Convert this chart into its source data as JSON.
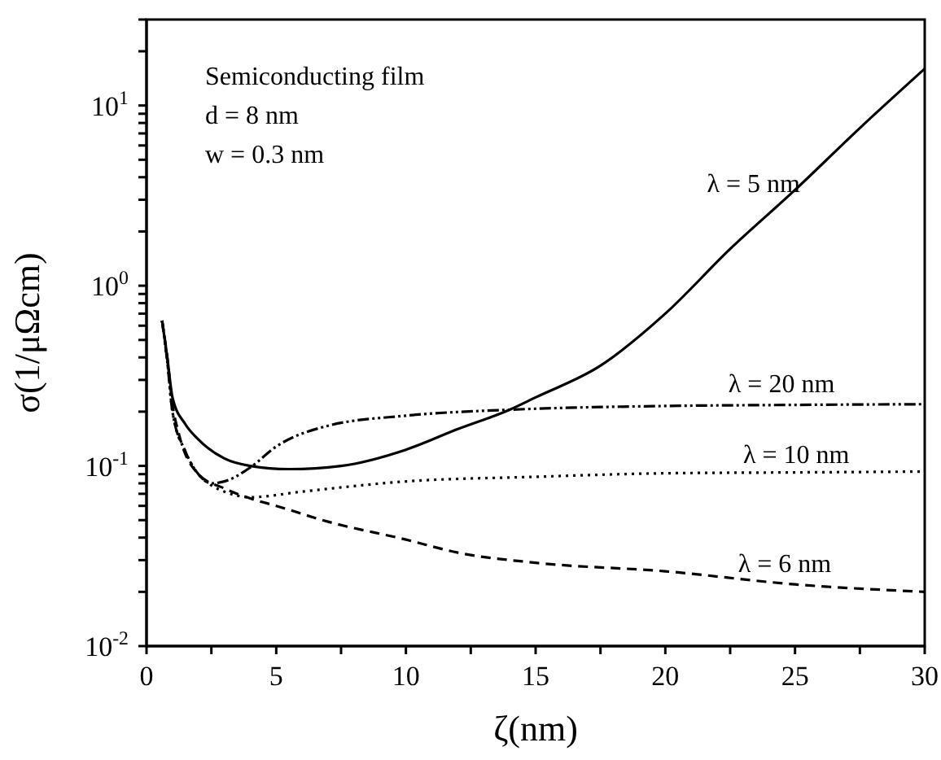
{
  "chart_data": {
    "type": "line",
    "xlabel": "ζ(nm)",
    "ylabel": "σ(1/μΩcm)",
    "log": "y",
    "grid": false,
    "legend": false,
    "marker": "none",
    "xlim": [
      0,
      30
    ],
    "xticks": [
      0,
      {
        "value": 2.5,
        "label": null
      },
      5,
      {
        "value": 7.5,
        "label": null
      },
      10,
      {
        "value": 12.5,
        "label": null
      },
      15,
      {
        "value": 17.5,
        "label": null
      },
      20,
      {
        "value": 22.5,
        "label": null
      },
      25,
      {
        "value": 27.5,
        "label": null
      },
      30
    ],
    "ylim": [
      0.01,
      30
    ],
    "yticks": [
      {
        "value": 0.01,
        "label": "10$^{-2}$"
      },
      {
        "value": 0.02,
        "label": null
      },
      {
        "value": 0.03,
        "label": null
      },
      {
        "value": 0.04,
        "label": null
      },
      {
        "value": 0.05,
        "label": null
      },
      {
        "value": 0.06,
        "label": null
      },
      {
        "value": 0.07,
        "label": null
      },
      {
        "value": 0.08,
        "label": null
      },
      {
        "value": 0.09,
        "label": null
      },
      {
        "value": 0.1,
        "label": "10$^{-1}$"
      },
      {
        "value": 0.2,
        "label": null
      },
      {
        "value": 0.3,
        "label": null
      },
      {
        "value": 0.4,
        "label": null
      },
      {
        "value": 0.5,
        "label": null
      },
      {
        "value": 0.6,
        "label": null
      },
      {
        "value": 0.7,
        "label": null
      },
      {
        "value": 0.8,
        "label": null
      },
      {
        "value": 0.9,
        "label": null
      },
      {
        "value": 1,
        "label": "10$^{0}$"
      },
      {
        "value": 2,
        "label": null
      },
      {
        "value": 3,
        "label": null
      },
      {
        "value": 4,
        "label": null
      },
      {
        "value": 5,
        "label": null
      },
      {
        "value": 6,
        "label": null
      },
      {
        "value": 7,
        "label": null
      },
      {
        "value": 8,
        "label": null
      },
      {
        "value": 9,
        "label": null
      },
      {
        "value": 10,
        "label": "10$^{1}$"
      },
      {
        "value": 20,
        "label": null
      },
      {
        "value": 30,
        "label": null
      }
    ],
    "annotations": [
      "Semiconducting film",
      "d = 8 nm",
      "w = 0.3 nm"
    ],
    "series": [
      {
        "name": "λ = 5 nm",
        "color": "#000000",
        "line_style": "solid",
        "x": [
          0.6,
          0.8,
          1,
          1.5,
          2,
          3,
          4,
          5.5,
          7.5,
          10,
          12,
          14,
          15,
          17.5,
          20,
          22.5,
          25,
          27.5,
          30
        ],
        "values": [
          0.64,
          0.4,
          0.24,
          0.17,
          0.14,
          0.11,
          0.1,
          0.096,
          0.1,
          0.123,
          0.16,
          0.205,
          0.24,
          0.36,
          0.7,
          1.6,
          3.4,
          7.5,
          16
        ]
      },
      {
        "name": "λ = 20 nm",
        "color": "#000000",
        "line_style": "dashdot",
        "x": [
          0.6,
          0.8,
          1,
          1.5,
          2,
          2.5,
          3,
          4,
          5,
          7,
          10,
          14,
          20,
          25,
          30
        ],
        "values": [
          0.64,
          0.38,
          0.2,
          0.12,
          0.09,
          0.08,
          0.082,
          0.098,
          0.128,
          0.167,
          0.19,
          0.205,
          0.215,
          0.218,
          0.22
        ]
      },
      {
        "name": "λ = 10 nm",
        "color": "#000000",
        "line_style": "dotted",
        "x": [
          0.6,
          0.8,
          1,
          1.5,
          2,
          2.5,
          3,
          4,
          6,
          10,
          15,
          20,
          25,
          30
        ],
        "values": [
          0.64,
          0.38,
          0.2,
          0.12,
          0.09,
          0.078,
          0.072,
          0.067,
          0.072,
          0.082,
          0.087,
          0.091,
          0.092,
          0.093
        ]
      },
      {
        "name": "λ = 6 nm",
        "color": "#000000",
        "line_style": "dashed",
        "x": [
          0.6,
          0.8,
          1,
          1.25,
          2,
          3,
          4,
          5,
          7,
          10,
          12,
          15,
          20,
          25,
          30
        ],
        "values": [
          0.64,
          0.4,
          0.22,
          0.15,
          0.09,
          0.075,
          0.066,
          0.06,
          0.049,
          0.039,
          0.033,
          0.029,
          0.026,
          0.022,
          0.02
        ]
      }
    ]
  }
}
